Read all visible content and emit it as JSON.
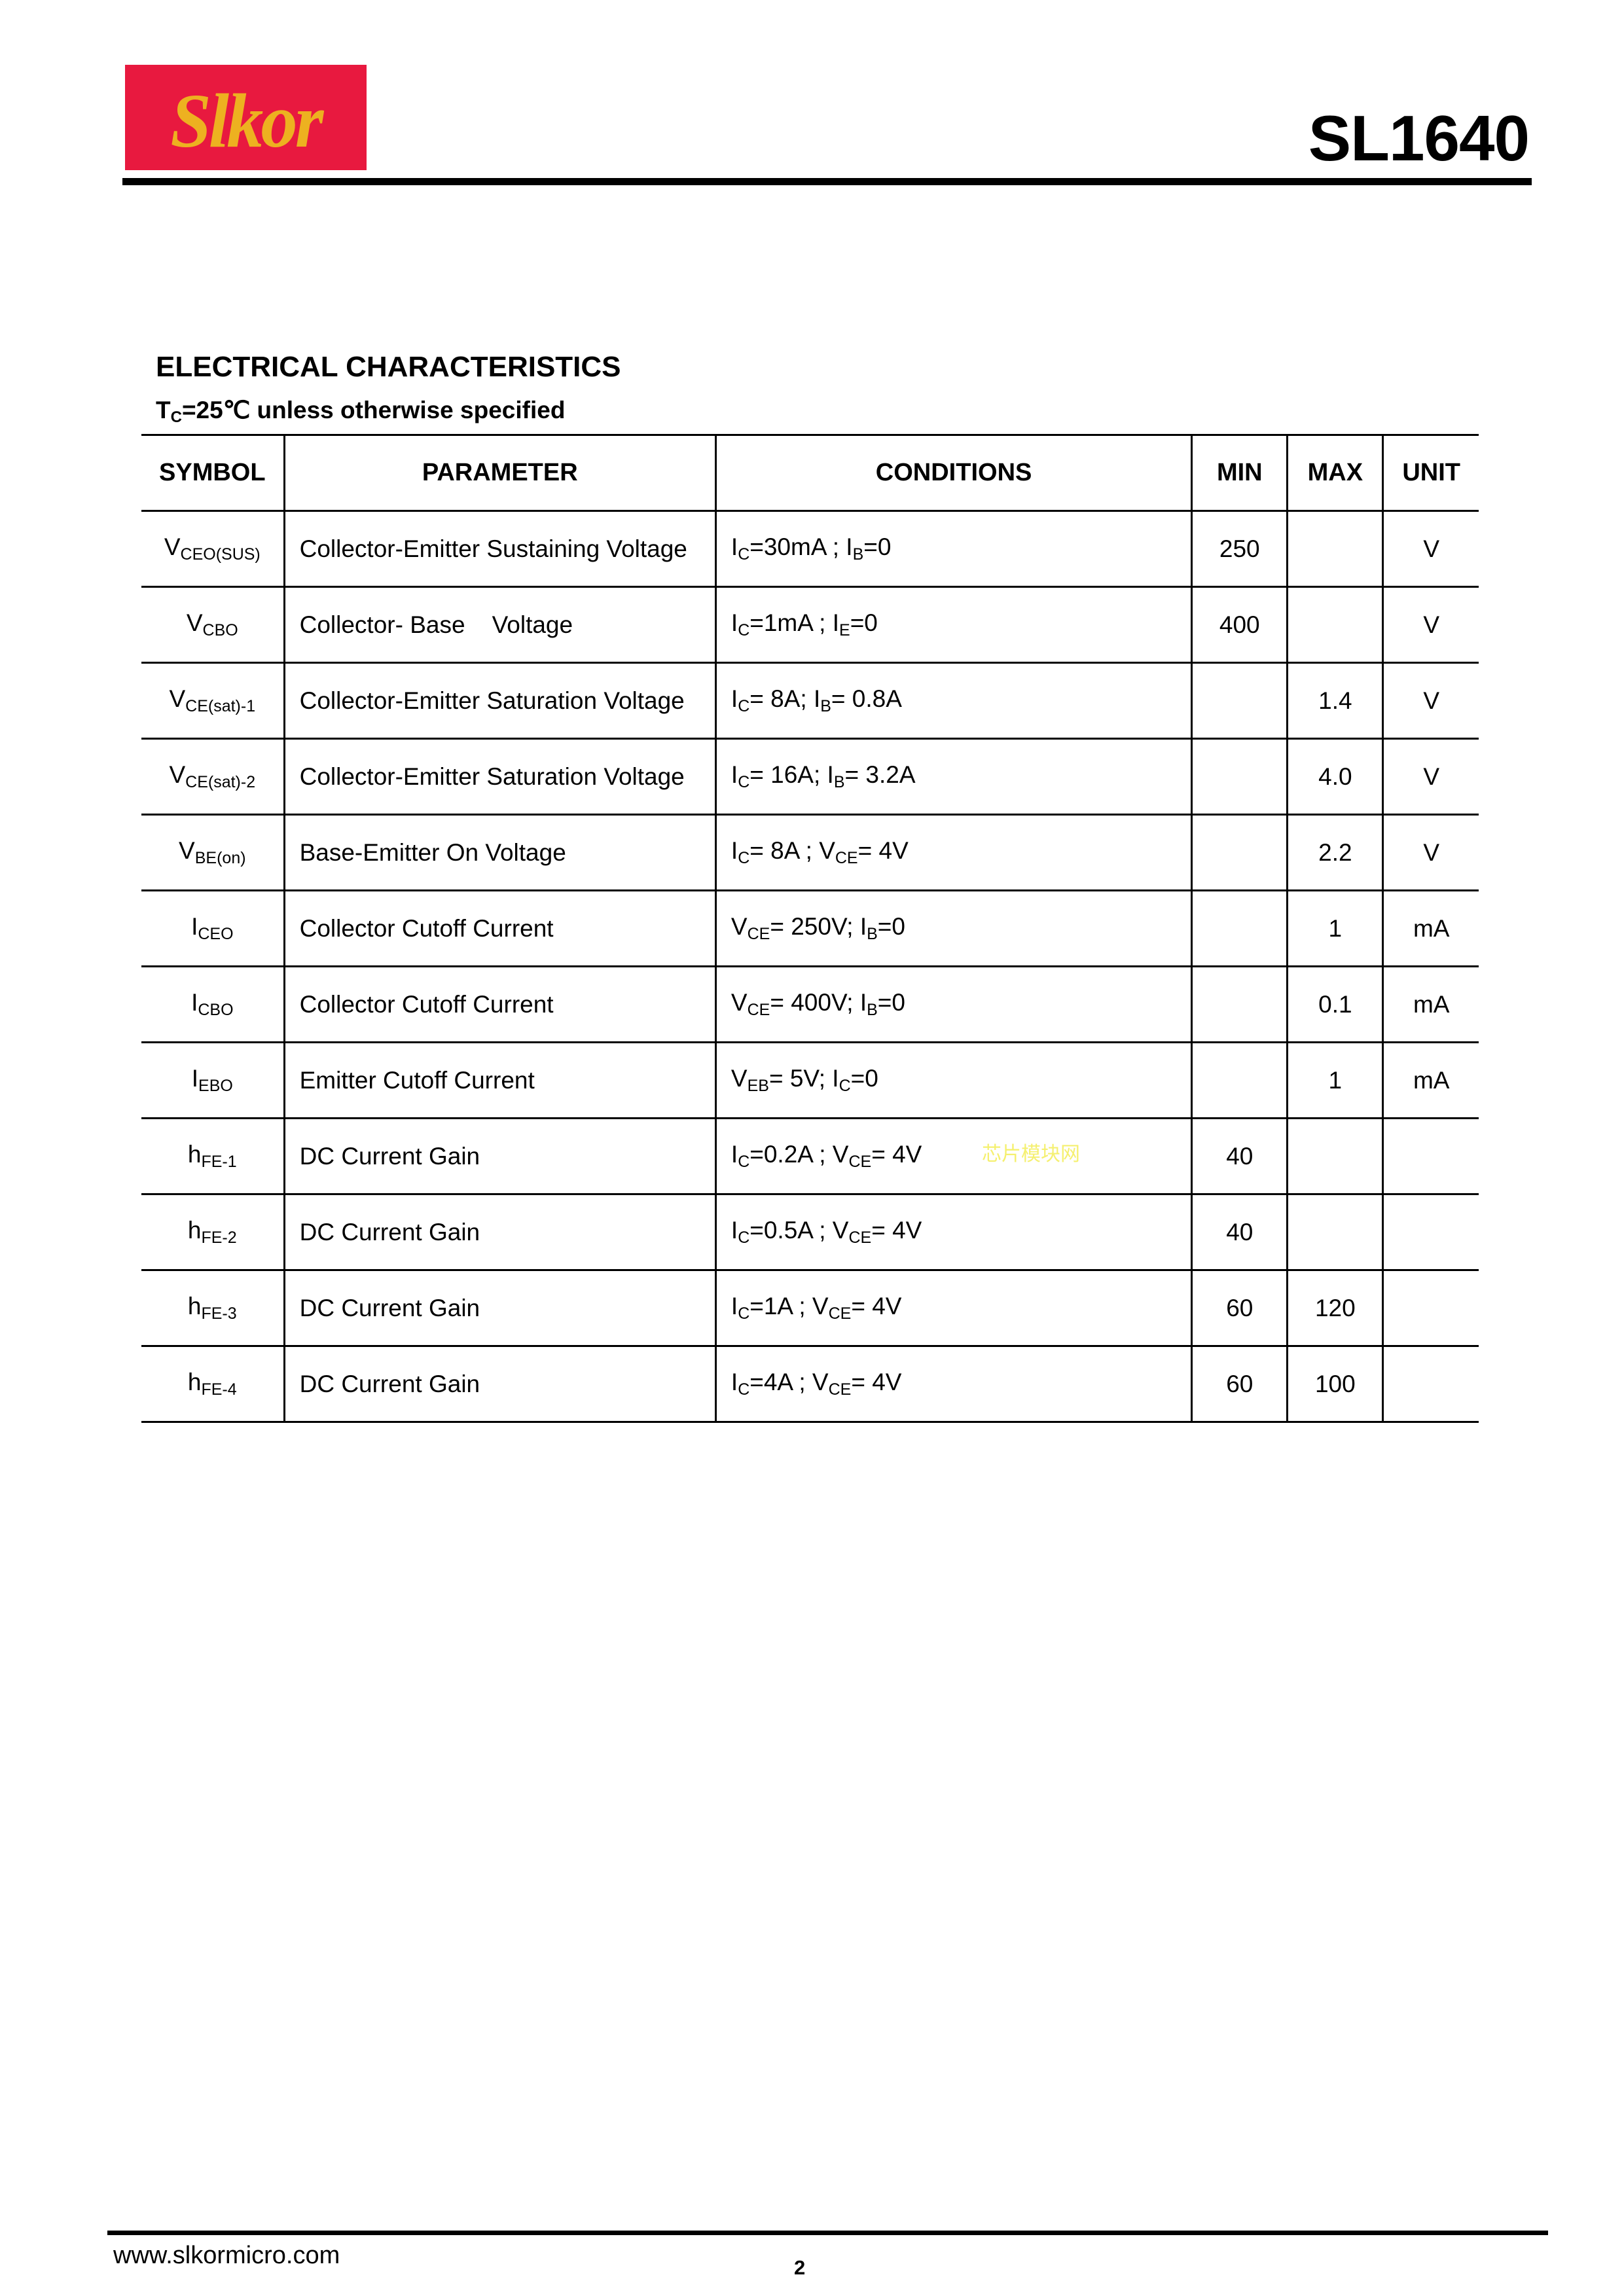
{
  "header": {
    "logo_text": "Slkor",
    "logo_colors": {
      "background": "#e8193f",
      "text": "#edb120"
    },
    "part_number": "SL1640"
  },
  "section": {
    "title": "ELECTRICAL CHARACTERISTICS",
    "condition_prefix": "T",
    "condition_sub": "C",
    "condition_rest": "=25℃  unless otherwise specified"
  },
  "table": {
    "headers": [
      "SYMBOL",
      "PARAMETER",
      "CONDITIONS",
      "MIN",
      "MAX",
      "UNIT"
    ],
    "rows": [
      {
        "symbol": [
          "V",
          "CEO(SUS)"
        ],
        "parameter": "Collector-Emitter Sustaining Voltage",
        "conditions": [
          "I",
          "C",
          "=30mA ; I",
          "B",
          "=0"
        ],
        "min": "250",
        "max": "",
        "unit": "V"
      },
      {
        "symbol": [
          "V",
          "CBO"
        ],
        "parameter": "Collector- Base    Voltage",
        "conditions": [
          "I",
          "C",
          "=1mA ; I",
          "E",
          "=0"
        ],
        "min": "400",
        "max": "",
        "unit": "V"
      },
      {
        "symbol": [
          "V",
          "CE(sat)-1"
        ],
        "parameter": "Collector-Emitter Saturation Voltage",
        "conditions": [
          "I",
          "C",
          "= 8A; I",
          "B",
          "= 0.8A"
        ],
        "min": "",
        "max": "1.4",
        "unit": "V"
      },
      {
        "symbol": [
          "V",
          "CE(sat)-2"
        ],
        "parameter": "Collector-Emitter Saturation Voltage",
        "conditions": [
          "I",
          "C",
          "= 16A; I",
          "B",
          "= 3.2A"
        ],
        "min": "",
        "max": "4.0",
        "unit": "V"
      },
      {
        "symbol": [
          "V",
          "BE(on)"
        ],
        "parameter": "Base-Emitter On Voltage",
        "conditions": [
          "I",
          "C",
          "= 8A ; V",
          "CE",
          "= 4V"
        ],
        "min": "",
        "max": "2.2",
        "unit": "V"
      },
      {
        "symbol": [
          "I",
          "CEO"
        ],
        "parameter": "Collector Cutoff Current",
        "conditions": [
          "V",
          "CE",
          "= 250V; I",
          "B",
          "=0"
        ],
        "min": "",
        "max": "1",
        "unit": "mA"
      },
      {
        "symbol": [
          "I",
          "CBO"
        ],
        "parameter": "Collector Cutoff Current",
        "conditions": [
          "V",
          "CE",
          "= 400V; I",
          "B",
          "=0"
        ],
        "min": "",
        "max": "0.1",
        "unit": "mA"
      },
      {
        "symbol": [
          "I",
          "EBO"
        ],
        "parameter": "Emitter Cutoff Current",
        "conditions": [
          "V",
          "EB",
          "= 5V; I",
          "C",
          "=0"
        ],
        "min": "",
        "max": "1",
        "unit": "mA"
      },
      {
        "symbol": [
          "h",
          "FE-1"
        ],
        "parameter": "DC Current Gain",
        "conditions": [
          "I",
          "C",
          "=0.2A ; V",
          "CE",
          "= 4V"
        ],
        "min": "40",
        "max": "",
        "unit": ""
      },
      {
        "symbol": [
          "h",
          "FE-2"
        ],
        "parameter": "DC Current Gain",
        "conditions": [
          "I",
          "C",
          "=0.5A ; V",
          "CE",
          "= 4V"
        ],
        "min": "40",
        "max": "",
        "unit": ""
      },
      {
        "symbol": [
          "h",
          "FE-3"
        ],
        "parameter": "DC Current Gain",
        "conditions": [
          "I",
          "C",
          "=1A ; V",
          "CE",
          "= 4V"
        ],
        "min": "60",
        "max": "120",
        "unit": ""
      },
      {
        "symbol": [
          "h",
          "FE-4"
        ],
        "parameter": "DC Current Gain",
        "conditions": [
          "I",
          "C",
          "=4A ; V",
          "CE",
          "= 4V"
        ],
        "min": "60",
        "max": "100",
        "unit": ""
      }
    ]
  },
  "watermark": "芯片模块网",
  "footer": {
    "url": "www.slkormicro.com",
    "page_number": "2"
  }
}
